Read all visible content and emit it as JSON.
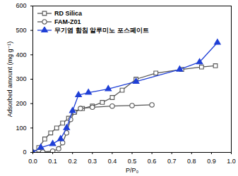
{
  "chart_data": {
    "type": "line",
    "x_label": "P/P₀",
    "y_label": "Adsorbed amount (mg g⁻¹)",
    "xlim": [
      0,
      1
    ],
    "xticks": [
      {
        "value": 0,
        "label": "0.0"
      },
      {
        "value": 0.1,
        "label": "0.1"
      },
      {
        "value": 0.2,
        "label": "0.2"
      },
      {
        "value": 0.3,
        "label": "0.3"
      },
      {
        "value": 0.4,
        "label": "0.4"
      },
      {
        "value": 0.5,
        "label": "0.5"
      },
      {
        "value": 0.6,
        "label": "0.6"
      },
      {
        "value": 0.7,
        "label": "0.7"
      },
      {
        "value": 0.8,
        "label": "0.8"
      },
      {
        "value": 0.9,
        "label": "0.9"
      },
      {
        "value": 1,
        "label": "1.0"
      }
    ],
    "ylim": [
      0,
      600
    ],
    "yticks": [
      0,
      100,
      200,
      300,
      400,
      500,
      600
    ],
    "grid": false,
    "legend": "upper left",
    "series": [
      {
        "name": "RD Silica",
        "color": "#555555",
        "marker": "open-square",
        "x": [
          0.03,
          0.06,
          0.09,
          0.12,
          0.15,
          0.18,
          0.21,
          0.25,
          0.3,
          0.35,
          0.4,
          0.45,
          0.52,
          0.62,
          0.75,
          0.85,
          0.92
        ],
        "values": [
          20,
          55,
          80,
          100,
          120,
          140,
          165,
          180,
          190,
          205,
          225,
          255,
          300,
          325,
          340,
          350,
          355
        ]
      },
      {
        "name": "FAM-Z01",
        "color": "#555555",
        "marker": "open-circle",
        "x": [
          0.01,
          0.05,
          0.1,
          0.13,
          0.15,
          0.17,
          0.19,
          0.21,
          0.24,
          0.3,
          0.4,
          0.5,
          0.6
        ],
        "values": [
          0,
          2,
          5,
          15,
          40,
          80,
          135,
          165,
          180,
          185,
          190,
          192,
          195
        ]
      },
      {
        "name": "무기염 함침 알루미노 포스페이트",
        "color": "#1f3fd6",
        "marker": "triangle",
        "x": [
          0.0,
          0.04,
          0.1,
          0.14,
          0.17,
          0.2,
          0.23,
          0.28,
          0.38,
          0.52,
          0.74,
          0.84,
          0.93
        ],
        "values": [
          0,
          20,
          35,
          55,
          100,
          170,
          235,
          245,
          260,
          290,
          340,
          370,
          450
        ]
      }
    ]
  }
}
